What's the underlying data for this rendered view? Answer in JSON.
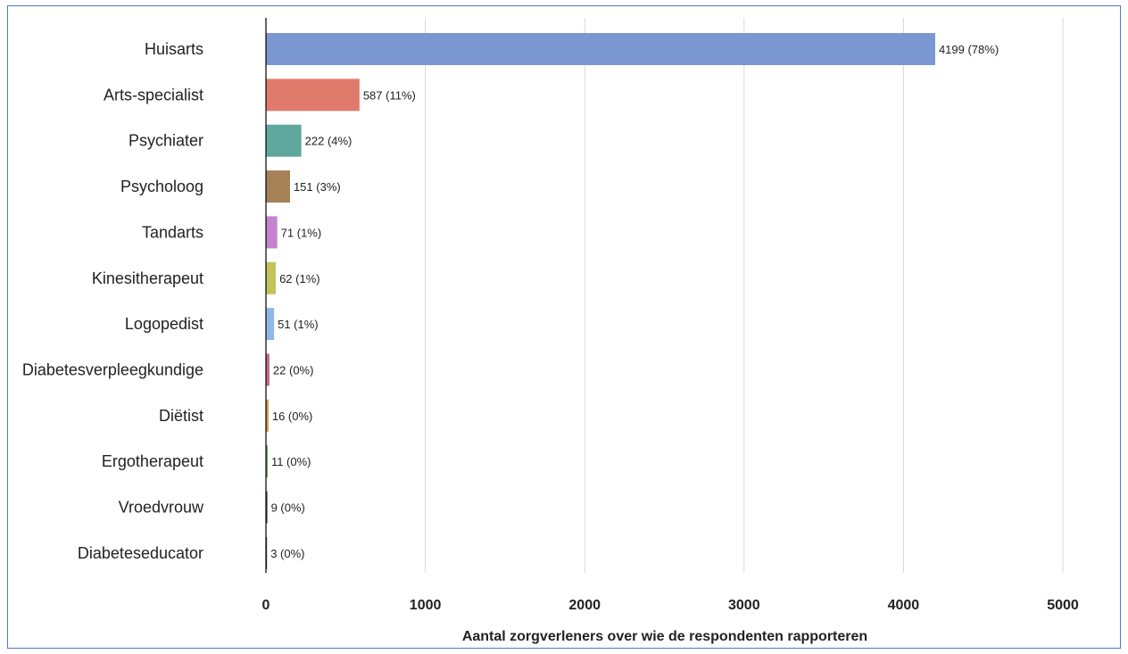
{
  "chart_data": {
    "type": "bar",
    "orientation": "horizontal",
    "title": "",
    "xlabel": "Aantal zorgverleners over wie de respondenten rapporteren",
    "ylabel": "",
    "xlim": [
      0,
      5000
    ],
    "xticks": [
      0,
      1000,
      2000,
      3000,
      4000,
      5000
    ],
    "grid": "vertical",
    "categories": [
      "Huisarts",
      "Arts-specialist",
      "Psychiater",
      "Psycholoog",
      "Tandarts",
      "Kinesitherapeut",
      "Logopedist",
      "Diabetesverpleegkundige",
      "Diëtist",
      "Ergotherapeut",
      "Vroedvrouw",
      "Diabeteseducator"
    ],
    "values": [
      4199,
      587,
      222,
      151,
      71,
      62,
      51,
      22,
      16,
      11,
      9,
      3
    ],
    "data_labels": [
      "4199 (78%)",
      "587 (11%)",
      "222 (4%)",
      "151 (3%)",
      "71 (1%)",
      "62 (1%)",
      "51 (1%)",
      "22 (0%)",
      "16 (0%)",
      "11 (0%)",
      "9 (0%)",
      "3 (0%)"
    ],
    "colors": [
      "#7b97d1",
      "#e07b6c",
      "#5fa89e",
      "#a68157",
      "#c484cf",
      "#c2c45a",
      "#8fb8e6",
      "#c2688c",
      "#c89a4e",
      "#6a9a5c",
      "#3a3a6a",
      "#444444"
    ]
  }
}
